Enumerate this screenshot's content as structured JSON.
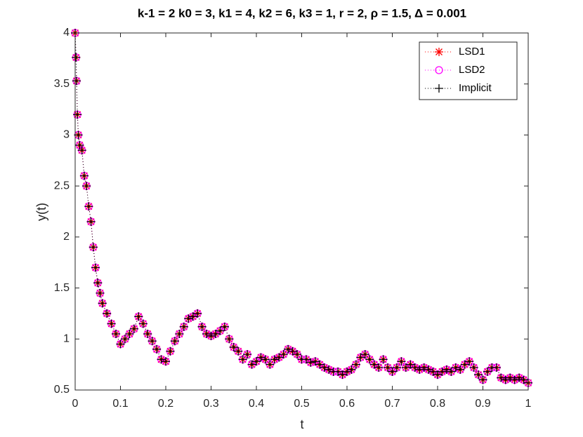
{
  "chart_data": {
    "type": "line",
    "title": "k-1 = 2 k0 = 3, k1 = 4, k2 = 6, k3 = 1, r = 2, ρ = 1.5, Δ = 0.001",
    "xlabel": "t",
    "ylabel": "y(t)",
    "x": [
      0,
      0.002,
      0.003,
      0.005,
      0.007,
      0.01,
      0.015,
      0.02,
      0.025,
      0.03,
      0.035,
      0.04,
      0.045,
      0.05,
      0.055,
      0.06,
      0.07,
      0.08,
      0.09,
      0.1,
      0.11,
      0.12,
      0.13,
      0.14,
      0.15,
      0.16,
      0.17,
      0.18,
      0.19,
      0.2,
      0.21,
      0.22,
      0.23,
      0.24,
      0.25,
      0.26,
      0.27,
      0.28,
      0.29,
      0.3,
      0.31,
      0.32,
      0.33,
      0.34,
      0.35,
      0.36,
      0.37,
      0.38,
      0.39,
      0.4,
      0.41,
      0.42,
      0.43,
      0.44,
      0.45,
      0.46,
      0.47,
      0.48,
      0.49,
      0.5,
      0.51,
      0.52,
      0.53,
      0.54,
      0.55,
      0.56,
      0.57,
      0.58,
      0.59,
      0.6,
      0.61,
      0.62,
      0.63,
      0.64,
      0.65,
      0.66,
      0.67,
      0.68,
      0.69,
      0.7,
      0.71,
      0.72,
      0.73,
      0.74,
      0.75,
      0.76,
      0.77,
      0.78,
      0.79,
      0.8,
      0.81,
      0.82,
      0.83,
      0.84,
      0.85,
      0.86,
      0.87,
      0.88,
      0.89,
      0.9,
      0.91,
      0.92,
      0.93,
      0.94,
      0.95,
      0.96,
      0.97,
      0.98,
      0.99,
      1.0
    ],
    "series": [
      {
        "name": "LSD1",
        "color": "#ff0000",
        "marker": "star",
        "values": [
          4.0,
          3.76,
          3.53,
          3.2,
          3.0,
          2.9,
          2.85,
          2.6,
          2.5,
          2.3,
          2.15,
          1.9,
          1.7,
          1.55,
          1.45,
          1.35,
          1.25,
          1.15,
          1.05,
          0.95,
          1.0,
          1.05,
          1.1,
          1.22,
          1.15,
          1.05,
          0.98,
          0.9,
          0.8,
          0.78,
          0.88,
          0.98,
          1.05,
          1.12,
          1.2,
          1.22,
          1.25,
          1.12,
          1.05,
          1.03,
          1.05,
          1.08,
          1.12,
          1.0,
          0.92,
          0.88,
          0.8,
          0.85,
          0.75,
          0.78,
          0.82,
          0.8,
          0.75,
          0.8,
          0.82,
          0.85,
          0.9,
          0.88,
          0.85,
          0.8,
          0.8,
          0.77,
          0.78,
          0.75,
          0.72,
          0.7,
          0.68,
          0.68,
          0.65,
          0.68,
          0.7,
          0.75,
          0.82,
          0.85,
          0.8,
          0.75,
          0.72,
          0.8,
          0.72,
          0.68,
          0.72,
          0.78,
          0.72,
          0.75,
          0.72,
          0.7,
          0.72,
          0.7,
          0.68,
          0.65,
          0.68,
          0.7,
          0.68,
          0.72,
          0.7,
          0.75,
          0.78,
          0.72,
          0.65,
          0.6,
          0.68,
          0.72,
          0.72,
          0.62,
          0.6,
          0.62,
          0.6,
          0.62,
          0.6,
          0.57
        ]
      },
      {
        "name": "LSD2",
        "color": "#ff00ff",
        "marker": "circle",
        "values": [
          4.0,
          3.76,
          3.53,
          3.2,
          3.0,
          2.9,
          2.85,
          2.6,
          2.5,
          2.3,
          2.15,
          1.9,
          1.7,
          1.55,
          1.45,
          1.35,
          1.25,
          1.15,
          1.05,
          0.95,
          1.0,
          1.05,
          1.1,
          1.22,
          1.15,
          1.05,
          0.98,
          0.9,
          0.8,
          0.78,
          0.88,
          0.98,
          1.05,
          1.12,
          1.2,
          1.22,
          1.25,
          1.12,
          1.05,
          1.03,
          1.05,
          1.08,
          1.12,
          1.0,
          0.92,
          0.88,
          0.8,
          0.85,
          0.75,
          0.78,
          0.82,
          0.8,
          0.75,
          0.8,
          0.82,
          0.85,
          0.9,
          0.88,
          0.85,
          0.8,
          0.8,
          0.77,
          0.78,
          0.75,
          0.72,
          0.7,
          0.68,
          0.68,
          0.65,
          0.68,
          0.7,
          0.75,
          0.82,
          0.85,
          0.8,
          0.75,
          0.72,
          0.8,
          0.72,
          0.68,
          0.72,
          0.78,
          0.72,
          0.75,
          0.72,
          0.7,
          0.72,
          0.7,
          0.68,
          0.65,
          0.68,
          0.7,
          0.68,
          0.72,
          0.7,
          0.75,
          0.78,
          0.72,
          0.65,
          0.6,
          0.68,
          0.72,
          0.72,
          0.62,
          0.6,
          0.62,
          0.6,
          0.62,
          0.6,
          0.57
        ]
      },
      {
        "name": "Implicit",
        "color": "#000000",
        "marker": "plus",
        "values": [
          4.0,
          3.76,
          3.53,
          3.2,
          3.0,
          2.9,
          2.85,
          2.6,
          2.5,
          2.3,
          2.15,
          1.9,
          1.7,
          1.55,
          1.45,
          1.35,
          1.25,
          1.15,
          1.05,
          0.95,
          1.0,
          1.05,
          1.1,
          1.22,
          1.15,
          1.05,
          0.98,
          0.9,
          0.8,
          0.78,
          0.88,
          0.98,
          1.05,
          1.12,
          1.2,
          1.22,
          1.25,
          1.12,
          1.05,
          1.03,
          1.05,
          1.08,
          1.12,
          1.0,
          0.92,
          0.88,
          0.8,
          0.85,
          0.75,
          0.78,
          0.82,
          0.8,
          0.75,
          0.8,
          0.82,
          0.85,
          0.9,
          0.88,
          0.85,
          0.8,
          0.8,
          0.77,
          0.78,
          0.75,
          0.72,
          0.7,
          0.68,
          0.68,
          0.65,
          0.68,
          0.7,
          0.75,
          0.82,
          0.85,
          0.8,
          0.75,
          0.72,
          0.8,
          0.72,
          0.68,
          0.72,
          0.78,
          0.72,
          0.75,
          0.72,
          0.7,
          0.72,
          0.7,
          0.68,
          0.65,
          0.68,
          0.7,
          0.68,
          0.72,
          0.7,
          0.75,
          0.78,
          0.72,
          0.65,
          0.6,
          0.68,
          0.72,
          0.72,
          0.62,
          0.6,
          0.62,
          0.6,
          0.62,
          0.6,
          0.57
        ]
      }
    ],
    "xlim": [
      0,
      1
    ],
    "xticks": [
      0,
      0.1,
      0.2,
      0.3,
      0.4,
      0.5,
      0.6,
      0.7,
      0.8,
      0.9,
      1
    ],
    "ylim": [
      0.5,
      4
    ],
    "yticks": [
      0.5,
      1,
      1.5,
      2,
      2.5,
      3,
      3.5,
      4
    ],
    "grid": false,
    "legend": "northeast"
  }
}
